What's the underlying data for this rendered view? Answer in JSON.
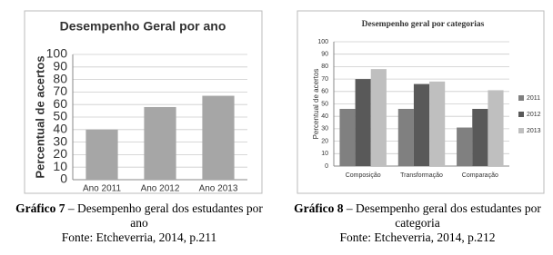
{
  "chart_data": [
    {
      "type": "bar",
      "title": "Desempenho Geral por ano",
      "ylabel": "Percentual de acertos",
      "categories": [
        "Ano 2011",
        "Ano 2012",
        "Ano 2013"
      ],
      "values": [
        40,
        58,
        67
      ],
      "color": "#a6a6a6",
      "ylim": [
        0,
        100
      ],
      "yticks": [
        0,
        10,
        20,
        30,
        40,
        50,
        60,
        70,
        80,
        90,
        100
      ],
      "grid": true
    },
    {
      "type": "bar",
      "title": "Desempenho geral por categorias",
      "ylabel": "Percentual de acertos",
      "categories": [
        "Composição",
        "Transformação",
        "Comparação"
      ],
      "series": [
        {
          "name": "2011",
          "color": "#808080",
          "values": [
            46,
            46,
            31
          ]
        },
        {
          "name": "2012",
          "color": "#595959",
          "values": [
            70,
            66,
            46
          ]
        },
        {
          "name": "2013",
          "color": "#bfbfbf",
          "values": [
            78,
            68,
            61
          ]
        }
      ],
      "ylim": [
        0,
        100
      ],
      "yticks": [
        0,
        10,
        20,
        30,
        40,
        50,
        60,
        70,
        80,
        90,
        100
      ],
      "grid": true,
      "legend": "right"
    }
  ],
  "captions": [
    {
      "label": "Gráfico 7",
      "text": " – Desempenho geral dos estudantes por ano",
      "source": "Fonte: Etcheverria, 2014, p.211"
    },
    {
      "label": "Gráfico 8",
      "text": " – Desempenho geral dos estudantes por categoria",
      "source": "Fonte: Etcheverria, 2014, p.212"
    }
  ]
}
